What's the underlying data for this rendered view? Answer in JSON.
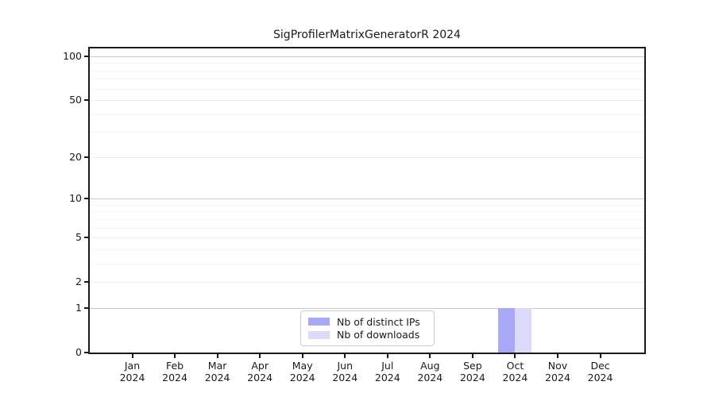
{
  "chart_data": {
    "type": "bar",
    "title": "SigProfilerMatrixGeneratorR 2024",
    "year_label": "2024",
    "categories": [
      "Jan",
      "Feb",
      "Mar",
      "Apr",
      "May",
      "Jun",
      "Jul",
      "Aug",
      "Sep",
      "Oct",
      "Nov",
      "Dec"
    ],
    "series": [
      {
        "name": "Nb of distinct IPs",
        "slug": "distinct-ips",
        "color": "#a8a8f6",
        "values": [
          0,
          0,
          0,
          0,
          0,
          0,
          0,
          0,
          0,
          1,
          0,
          0
        ]
      },
      {
        "name": "Nb of downloads",
        "slug": "downloads",
        "color": "#dbdbf9",
        "values": [
          0,
          0,
          0,
          0,
          0,
          0,
          0,
          0,
          0,
          1,
          0,
          0
        ]
      }
    ],
    "xlabel": "",
    "ylabel": "",
    "yscale": "log1p",
    "ylim": [
      0,
      113
    ],
    "yticks": [
      0,
      1,
      2,
      5,
      10,
      20,
      50,
      100
    ],
    "grid": {
      "on": true,
      "power_ticks": [
        1,
        10,
        100
      ],
      "labeled_minor_ticks": [
        2,
        5,
        20,
        50
      ],
      "minor_ticks": [
        3,
        4,
        6,
        7,
        8,
        9,
        30,
        40,
        60,
        70,
        80,
        90
      ],
      "major_color": "#c8c8c8",
      "mid_color": "#ededed",
      "minor_color": "#f4f4f4"
    },
    "legend": {
      "position": "lower-center",
      "entries": [
        "Nb of distinct IPs",
        "Nb of downloads"
      ]
    },
    "colors": {
      "axis": "#1a1a1a",
      "background": "#ffffff",
      "legend_border": "#cccccc"
    }
  }
}
